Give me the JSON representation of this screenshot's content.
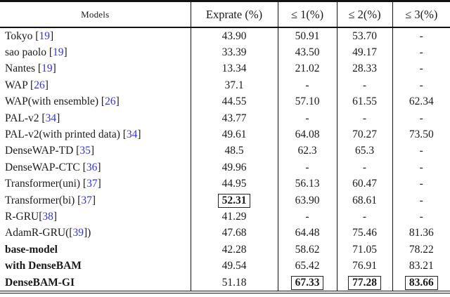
{
  "colors": {
    "citation_blue": "#3232dd",
    "text": "#1a1a1a",
    "rule": "#111111",
    "box_border": "#222222",
    "background": "#ffffff"
  },
  "table": {
    "columns": [
      "Models",
      "Exprate (%)",
      "≤ 1(%)",
      "≤ 2(%)",
      "≤ 3(%)"
    ],
    "rows": [
      {
        "pre": "Tokyo [",
        "cite": "19",
        "post": "]",
        "bold": false,
        "cells": [
          {
            "v": "43.90"
          },
          {
            "v": "50.91"
          },
          {
            "v": "53.70"
          },
          {
            "v": "-"
          }
        ]
      },
      {
        "pre": "sao paolo [",
        "cite": "19",
        "post": "]",
        "bold": false,
        "cells": [
          {
            "v": "33.39"
          },
          {
            "v": "43.50"
          },
          {
            "v": "49.17"
          },
          {
            "v": "-"
          }
        ]
      },
      {
        "pre": "Nantes [",
        "cite": "19",
        "post": "]",
        "bold": false,
        "cells": [
          {
            "v": "13.34"
          },
          {
            "v": "21.02"
          },
          {
            "v": "28.33"
          },
          {
            "v": "-"
          }
        ]
      },
      {
        "pre": "WAP [",
        "cite": "26",
        "post": "]",
        "bold": false,
        "cells": [
          {
            "v": "37.1"
          },
          {
            "v": "-"
          },
          {
            "v": "-"
          },
          {
            "v": "-"
          }
        ]
      },
      {
        "pre": "WAP(with ensemble) [",
        "cite": "26",
        "post": "]",
        "bold": false,
        "cells": [
          {
            "v": "44.55"
          },
          {
            "v": "57.10"
          },
          {
            "v": "61.55"
          },
          {
            "v": "62.34"
          }
        ]
      },
      {
        "pre": "PAL-v2 [",
        "cite": "34",
        "post": "]",
        "bold": false,
        "cells": [
          {
            "v": "43.77"
          },
          {
            "v": "-"
          },
          {
            "v": "-"
          },
          {
            "v": "-"
          }
        ]
      },
      {
        "pre": "PAL-v2(with printed data) [",
        "cite": "34",
        "post": "]",
        "bold": false,
        "cells": [
          {
            "v": "49.61"
          },
          {
            "v": "64.08"
          },
          {
            "v": "70.27"
          },
          {
            "v": "73.50"
          }
        ]
      },
      {
        "pre": "DenseWAP-TD [",
        "cite": "35",
        "post": "]",
        "bold": false,
        "cells": [
          {
            "v": "48.5"
          },
          {
            "v": "62.3"
          },
          {
            "v": "65.3"
          },
          {
            "v": "-"
          }
        ]
      },
      {
        "pre": "DenseWAP-CTC [",
        "cite": "36",
        "post": "]",
        "bold": false,
        "cells": [
          {
            "v": "49.96"
          },
          {
            "v": "-"
          },
          {
            "v": "-"
          },
          {
            "v": "-"
          }
        ]
      },
      {
        "pre": "Transformer(uni) [",
        "cite": "37",
        "post": "]",
        "bold": false,
        "cells": [
          {
            "v": "44.95"
          },
          {
            "v": "56.13"
          },
          {
            "v": "60.47"
          },
          {
            "v": "-"
          }
        ]
      },
      {
        "pre": "Transformer(bi) [",
        "cite": "37",
        "post": "]",
        "bold": false,
        "cells": [
          {
            "v": "52.31",
            "boxed": true,
            "bold": true
          },
          {
            "v": "63.90"
          },
          {
            "v": "68.61"
          },
          {
            "v": "-"
          }
        ]
      },
      {
        "pre": "R-GRU[",
        "cite": "38",
        "post": "]",
        "bold": false,
        "cells": [
          {
            "v": "41.29"
          },
          {
            "v": "-"
          },
          {
            "v": "-"
          },
          {
            "v": "-"
          }
        ]
      },
      {
        "pre": "AdamR-GRU([",
        "cite": "39",
        "post": "])",
        "bold": false,
        "cells": [
          {
            "v": "47.68"
          },
          {
            "v": "64.48"
          },
          {
            "v": "75.46"
          },
          {
            "v": "81.36"
          }
        ]
      },
      {
        "pre": "base-model",
        "cite": null,
        "post": "",
        "bold": true,
        "cells": [
          {
            "v": "42.28"
          },
          {
            "v": "58.62"
          },
          {
            "v": "71.05"
          },
          {
            "v": "78.22"
          }
        ]
      },
      {
        "pre": "with DenseBAM",
        "cite": null,
        "post": "",
        "bold": true,
        "cells": [
          {
            "v": "49.54"
          },
          {
            "v": "65.42"
          },
          {
            "v": "76.91"
          },
          {
            "v": "83.21"
          }
        ]
      },
      {
        "pre": "DenseBAM-GI",
        "cite": null,
        "post": "",
        "bold": true,
        "cells": [
          {
            "v": "51.18"
          },
          {
            "v": "67.33",
            "boxed": true,
            "bold": true
          },
          {
            "v": "77.28",
            "boxed": true,
            "bold": true
          },
          {
            "v": "83.66",
            "boxed": true,
            "bold": true
          }
        ]
      }
    ]
  }
}
